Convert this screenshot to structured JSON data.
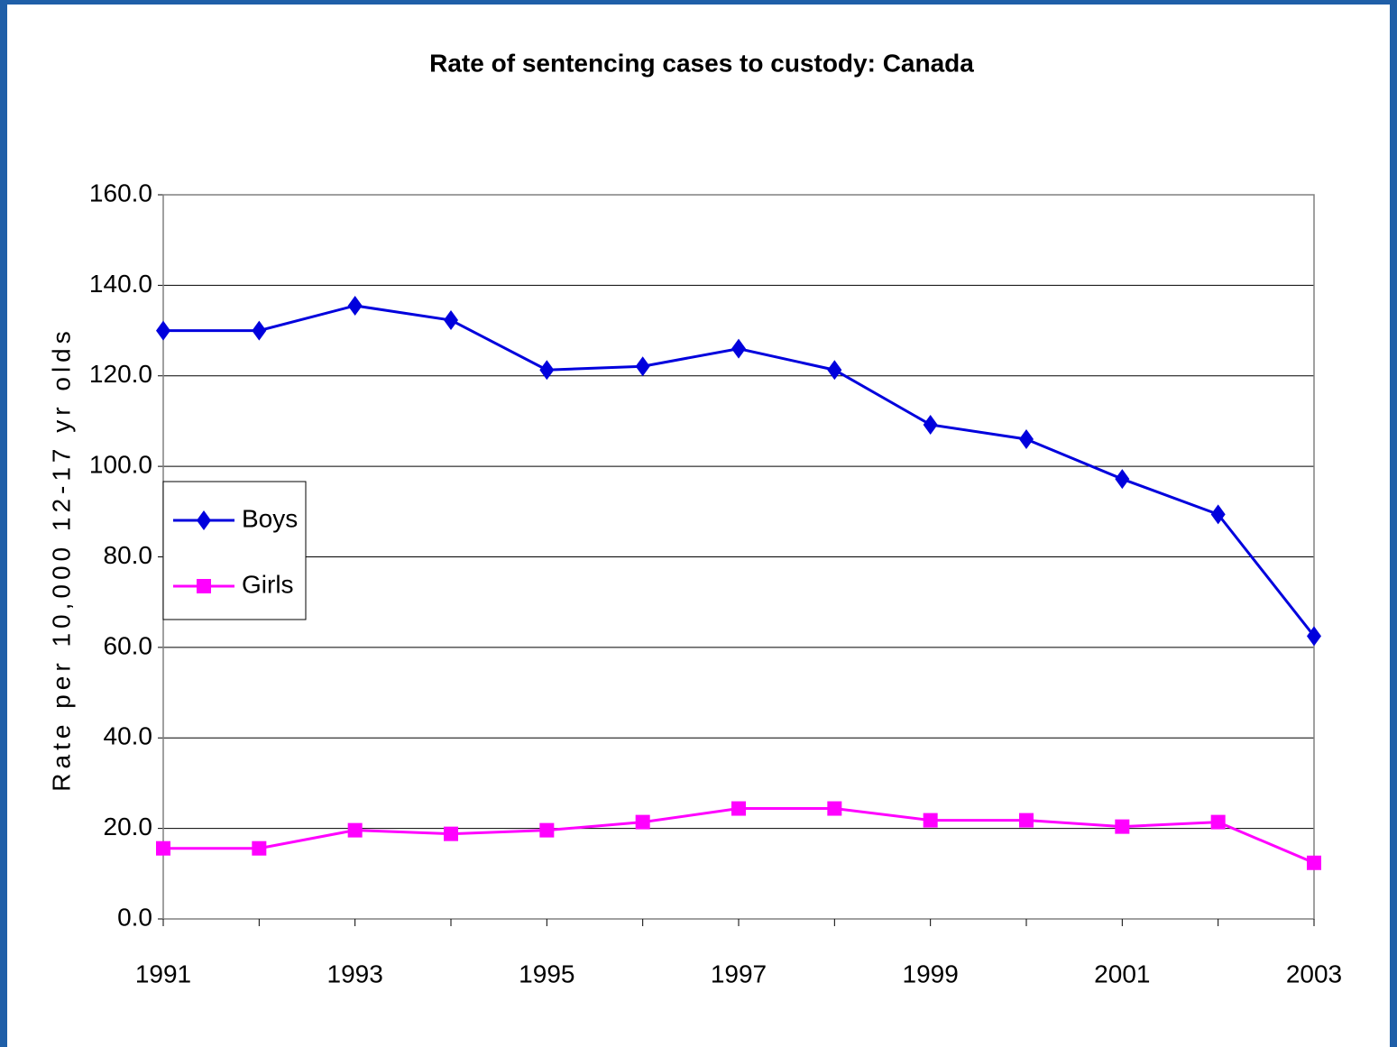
{
  "chart_data": {
    "type": "line",
    "title": "Rate of sentencing cases to custody: Canada",
    "y_label": "Rate per 10,000 12-17 yr olds",
    "categories": [
      "1991",
      null,
      "1993",
      null,
      "1995",
      null,
      "1997",
      null,
      "1999",
      null,
      "2001",
      null,
      "2003"
    ],
    "series": [
      {
        "name": "Boys",
        "color": "#0000dd",
        "marker": "diamond",
        "values": [
          130,
          130,
          135.5,
          132.3,
          121.3,
          122.1,
          126,
          121.3,
          109.2,
          106,
          97.2,
          89.4,
          62.5
        ]
      },
      {
        "name": "Girls",
        "color": "#ff00ff",
        "marker": "square",
        "values": [
          15.6,
          15.6,
          19.6,
          18.8,
          19.6,
          21.4,
          24.4,
          24.4,
          21.8,
          21.8,
          20.4,
          21.4,
          12.4
        ]
      }
    ],
    "ylim": [
      0,
      160
    ],
    "yticks": [
      {
        "value": 0,
        "label": "0.0"
      },
      {
        "value": 20,
        "label": "20.0"
      },
      {
        "value": 40,
        "label": "40.0"
      },
      {
        "value": 60,
        "label": "60.0"
      },
      {
        "value": 80,
        "label": "80.0"
      },
      {
        "value": 100,
        "label": "100.0"
      },
      {
        "value": 120,
        "label": "120.0"
      },
      {
        "value": 140,
        "label": "140.0"
      },
      {
        "value": 160,
        "label": "160.0"
      }
    ],
    "grid": true,
    "legend": "left"
  }
}
